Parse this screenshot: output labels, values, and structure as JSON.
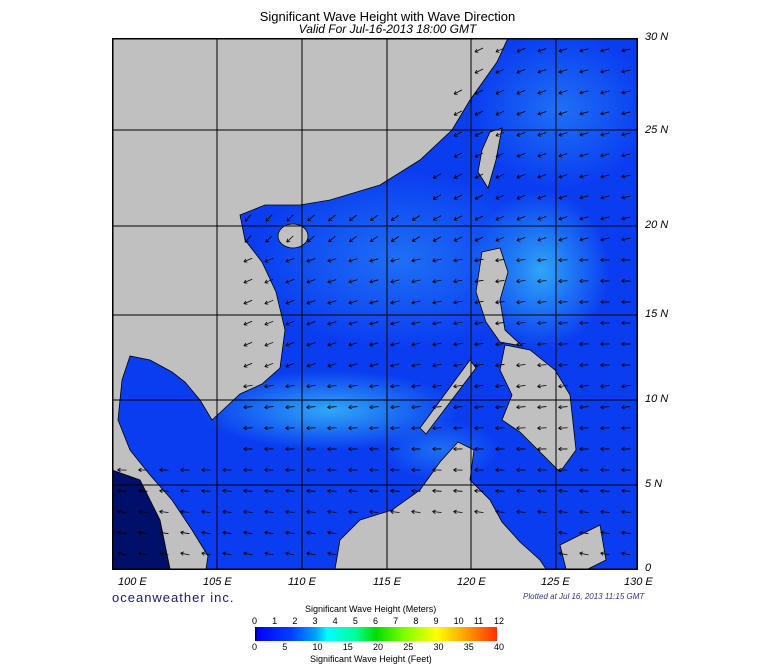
{
  "title": "Significant Wave Height with Wave Direction",
  "subtitle": "Valid For Jul-16-2013 18:00 GMT",
  "lon_labels": [
    "100 E",
    "105 E",
    "110 E",
    "115 E",
    "120 E",
    "125 E",
    "130 E"
  ],
  "lat_labels": [
    "30 N",
    "25 N",
    "20 N",
    "15 N",
    "10 N",
    "5 N",
    "0"
  ],
  "brand": "oceanweather inc.",
  "plotted": "Plotted at Jul 16, 2013 11:15 GMT",
  "colorbar": {
    "meters_title": "Significant Wave Height (Meters)",
    "meters_ticks": [
      "0",
      "1",
      "2",
      "3",
      "4",
      "5",
      "6",
      "7",
      "8",
      "9",
      "10",
      "11",
      "12"
    ],
    "feet_ticks": [
      "0",
      "5",
      "10",
      "15",
      "20",
      "25",
      "30",
      "35",
      "40"
    ],
    "feet_title": "Significant Wave Height (Feet)"
  },
  "colors": {
    "land": "#c0c0c0",
    "sea_base": "#0a3cf0",
    "sea_light": "#2a90f5",
    "arrow": "#000000"
  }
}
